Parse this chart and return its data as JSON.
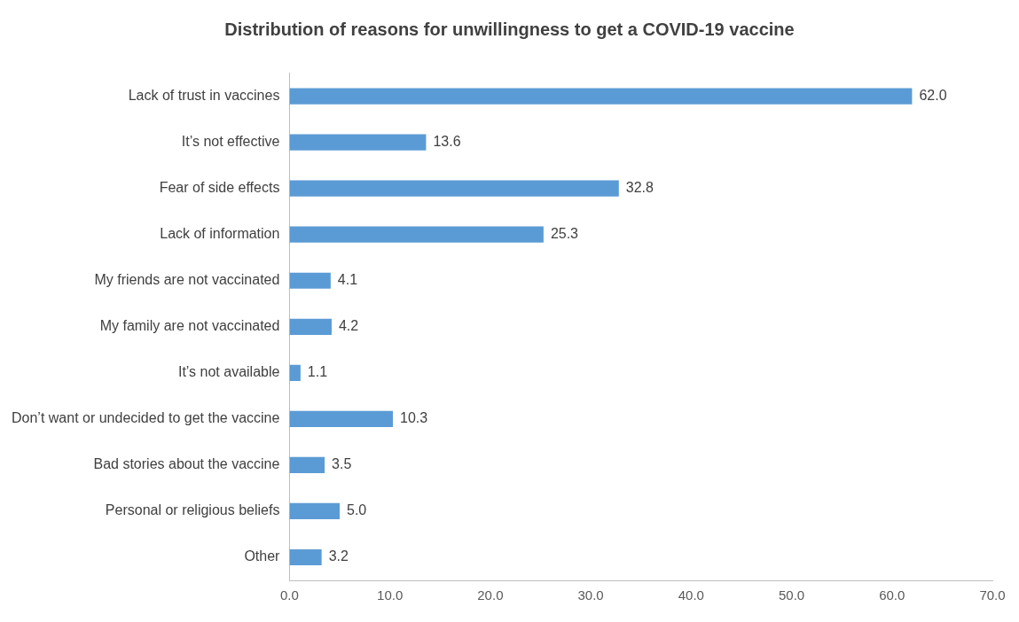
{
  "chart_data": {
    "type": "bar",
    "orientation": "horizontal",
    "title": "Distribution of reasons for unwillingness to get a COVID-19 vaccine",
    "categories": [
      "Lack of trust in vaccines",
      "It’s not effective",
      "Fear of side effects",
      "Lack of information",
      "My friends are not vaccinated",
      "My family are not vaccinated",
      "It’s not available",
      "Don’t want or undecided to get the vaccine",
      "Bad stories about the vaccine",
      "Personal or religious beliefs",
      "Other"
    ],
    "values": [
      62.0,
      13.6,
      32.8,
      25.3,
      4.1,
      4.2,
      1.1,
      10.3,
      3.5,
      5.0,
      3.2
    ],
    "value_labels": [
      "62.0",
      "13.6",
      "32.8",
      "25.3",
      "4.1",
      "4.2",
      "1.1",
      "10.3",
      "3.5",
      "5.0",
      "3.2"
    ],
    "color": "#5b9bd5",
    "xlim": [
      0,
      70
    ],
    "xticks": [
      {
        "value": 0,
        "label": "0.0"
      },
      {
        "value": 10,
        "label": "10.0"
      },
      {
        "value": 20,
        "label": "20.0"
      },
      {
        "value": 30,
        "label": "30.0"
      },
      {
        "value": 40,
        "label": "40.0"
      },
      {
        "value": 50,
        "label": "50.0"
      },
      {
        "value": 60,
        "label": "60.0"
      },
      {
        "value": 70,
        "label": "70.0"
      }
    ],
    "grid": false,
    "legend": false
  }
}
